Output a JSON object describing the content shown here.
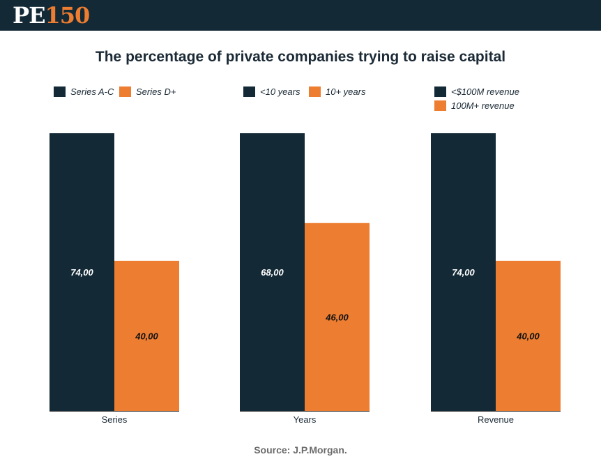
{
  "brand": {
    "pe": "PE",
    "num": "150"
  },
  "chart_data": [
    {
      "type": "bar",
      "title": "The percentage of private companies trying to raise capital",
      "xlabel": "Series",
      "categories": [
        "Series"
      ],
      "series": [
        {
          "name": "Series A-C",
          "values": [
            74
          ],
          "label": "74,00",
          "color": "#132936"
        },
        {
          "name": "Series D+",
          "values": [
            40
          ],
          "label": "40,00",
          "color": "#ed7d31"
        }
      ],
      "ylim": [
        0,
        74
      ]
    },
    {
      "type": "bar",
      "xlabel": "Years",
      "categories": [
        "Years"
      ],
      "series": [
        {
          "name": "<10 years",
          "values": [
            68
          ],
          "label": "68,00",
          "color": "#132936"
        },
        {
          "name": "10+ years",
          "values": [
            46
          ],
          "label": "46,00",
          "color": "#ed7d31"
        }
      ],
      "ylim": [
        0,
        68
      ]
    },
    {
      "type": "bar",
      "xlabel": "Revenue",
      "categories": [
        "Revenue"
      ],
      "series": [
        {
          "name": "<$100M revenue",
          "values": [
            74
          ],
          "label": "74,00",
          "color": "#132936"
        },
        {
          "name": "100M+ revenue",
          "values": [
            40
          ],
          "label": "40,00",
          "color": "#ed7d31"
        }
      ],
      "ylim": [
        0,
        74
      ]
    }
  ],
  "source": "Source: J.P.Morgan.",
  "colors": {
    "dark": "#132936",
    "orange": "#ed7d31",
    "header": "#132936"
  }
}
